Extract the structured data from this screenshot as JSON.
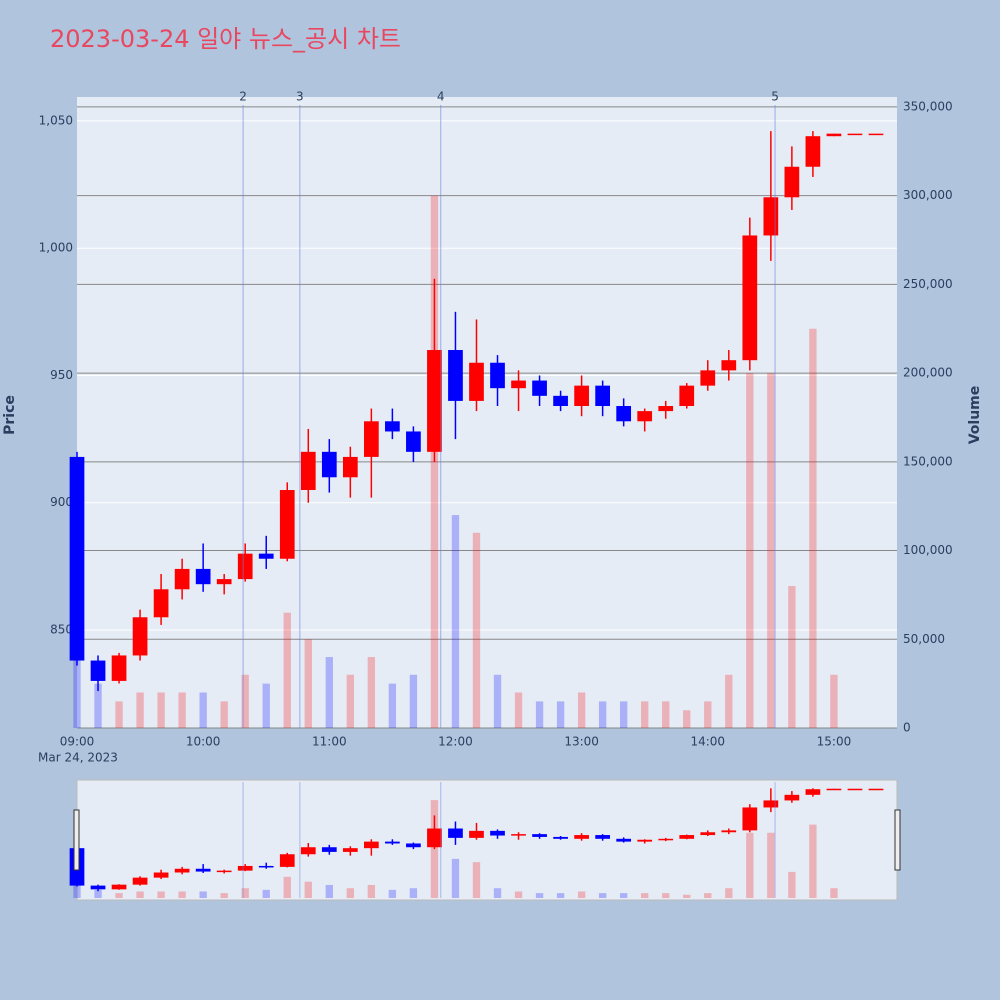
{
  "chart_data": {
    "type": "candlestick",
    "title": "2023-03-24 일야 뉴스_공시 차트",
    "ylabel": "Price",
    "y2label": "Volume",
    "date_label": "Mar 24, 2023",
    "x": [
      "09:00",
      "09:10",
      "09:20",
      "09:30",
      "09:40",
      "09:50",
      "10:00",
      "10:10",
      "10:20",
      "10:30",
      "10:40",
      "10:50",
      "11:00",
      "11:10",
      "11:20",
      "11:30",
      "11:40",
      "11:50",
      "12:00",
      "12:10",
      "12:20",
      "12:30",
      "12:40",
      "12:50",
      "13:00",
      "13:10",
      "13:20",
      "13:30",
      "13:40",
      "13:50",
      "14:00",
      "14:10",
      "14:20",
      "14:30",
      "14:40",
      "14:50",
      "15:00",
      "15:10",
      "15:20"
    ],
    "open": [
      918,
      838,
      830,
      840,
      855,
      866,
      874,
      868,
      870,
      880,
      878,
      905,
      920,
      910,
      918,
      932,
      928,
      920,
      960,
      940,
      955,
      945,
      948,
      942,
      938,
      946,
      938,
      932,
      936,
      938,
      946,
      952,
      956,
      1005,
      1020,
      1032,
      1044,
      1045,
      1045
    ],
    "high": [
      920,
      840,
      841,
      858,
      872,
      878,
      884,
      872,
      884,
      887,
      908,
      929,
      925,
      922,
      937,
      937,
      930,
      988,
      975,
      972,
      958,
      952,
      950,
      944,
      950,
      948,
      941,
      937,
      940,
      947,
      956,
      960,
      1012,
      1046,
      1040,
      1046,
      1045,
      1045,
      1045
    ],
    "low": [
      836,
      826,
      829,
      838,
      852,
      862,
      865,
      864,
      869,
      874,
      877,
      900,
      904,
      902,
      902,
      925,
      916,
      916,
      925,
      936,
      938,
      936,
      938,
      936,
      934,
      934,
      930,
      928,
      933,
      937,
      944,
      948,
      952,
      995,
      1015,
      1028,
      1044,
      1045,
      1045
    ],
    "close": [
      838,
      830,
      840,
      855,
      866,
      874,
      868,
      870,
      880,
      878,
      905,
      920,
      910,
      918,
      932,
      928,
      920,
      960,
      940,
      955,
      945,
      948,
      942,
      938,
      946,
      938,
      932,
      936,
      938,
      946,
      952,
      956,
      1005,
      1020,
      1032,
      1044,
      1045,
      1045,
      1045
    ],
    "volume": [
      60000,
      25000,
      15000,
      20000,
      20000,
      20000,
      20000,
      15000,
      30000,
      25000,
      65000,
      50000,
      40000,
      30000,
      40000,
      25000,
      30000,
      300000,
      120000,
      110000,
      30000,
      20000,
      15000,
      15000,
      20000,
      15000,
      15000,
      15000,
      15000,
      10000,
      15000,
      30000,
      200000,
      200000,
      80000,
      225000,
      30000,
      0,
      0
    ],
    "up_color": "#ff0000",
    "down_color": "#0000ff",
    "xlim": [
      "09:00",
      "15:30"
    ],
    "xticks": [
      "09:00",
      "10:00",
      "11:00",
      "12:00",
      "13:00",
      "14:00",
      "15:00"
    ],
    "ylim": [
      811.5,
      1059.4
    ],
    "yticks": [
      {
        "value": 850,
        "label": "850"
      },
      {
        "value": 900,
        "label": "900"
      },
      {
        "value": 950,
        "label": "950"
      },
      {
        "value": 1000,
        "label": "1,000"
      },
      {
        "value": 1050,
        "label": "1,050"
      }
    ],
    "y2lim": [
      0,
      355600
    ],
    "y2ticks": [
      0,
      {
        "value": 50000,
        "label": "50,000"
      },
      {
        "value": 100000,
        "label": "100,000"
      },
      {
        "value": 150000,
        "label": "150,000"
      },
      {
        "value": 200000,
        "label": "200,000"
      },
      {
        "value": 250000,
        "label": "250,000"
      },
      {
        "value": 300000,
        "label": "300,000"
      },
      {
        "value": 350000,
        "label": "350,000"
      }
    ],
    "annotations": [
      {
        "x": "10:19",
        "text": "2"
      },
      {
        "x": "10:46",
        "text": "3"
      },
      {
        "x": "11:53",
        "text": "4"
      },
      {
        "x": "14:32",
        "text": "5"
      }
    ]
  }
}
